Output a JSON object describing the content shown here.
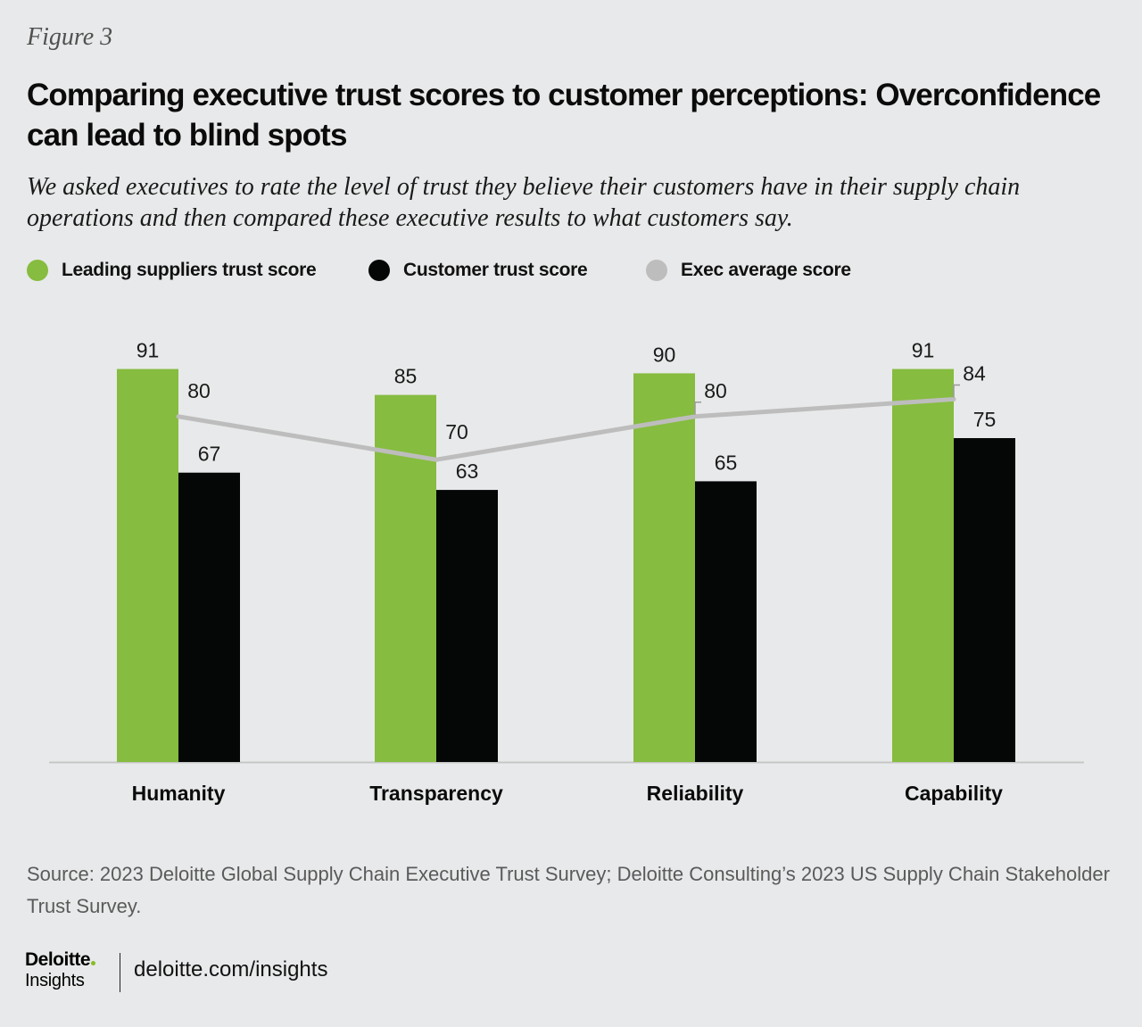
{
  "figure_label": "Figure 3",
  "title": "Comparing executive trust scores to customer perceptions: Overconfidence can lead to blind spots",
  "subtitle": "We asked executives to rate the level of trust they believe their customers have in their supply chain operations and then compared these executive results to what customers say.",
  "legend": [
    {
      "label": "Leading suppliers trust score",
      "color": "#86bc3f"
    },
    {
      "label": "Customer trust score",
      "color": "#050707"
    },
    {
      "label": "Exec average score",
      "color": "#bdbdbd"
    }
  ],
  "chart_data": {
    "type": "bar",
    "categories": [
      "Humanity",
      "Transparency",
      "Reliability",
      "Capability"
    ],
    "series": [
      {
        "name": "Leading suppliers trust score",
        "type": "bar",
        "color": "#86bc3f",
        "values": [
          91,
          85,
          90,
          91
        ]
      },
      {
        "name": "Customer trust score",
        "type": "bar",
        "color": "#050707",
        "values": [
          67,
          63,
          65,
          75
        ]
      },
      {
        "name": "Exec average score",
        "type": "line",
        "color": "#bdbdbd",
        "values": [
          80,
          70,
          80,
          84
        ]
      }
    ],
    "ylim": [
      0,
      100
    ],
    "grid": false,
    "legend_position": "top-left"
  },
  "source": "Source: 2023 Deloitte Global Supply Chain Executive Trust Survey; Deloitte Consulting’s 2023 US Supply Chain Stakeholder Trust Survey.",
  "footer": {
    "brand_name": "Deloitte",
    "brand_sub": "Insights",
    "link": "deloitte.com/insights"
  }
}
